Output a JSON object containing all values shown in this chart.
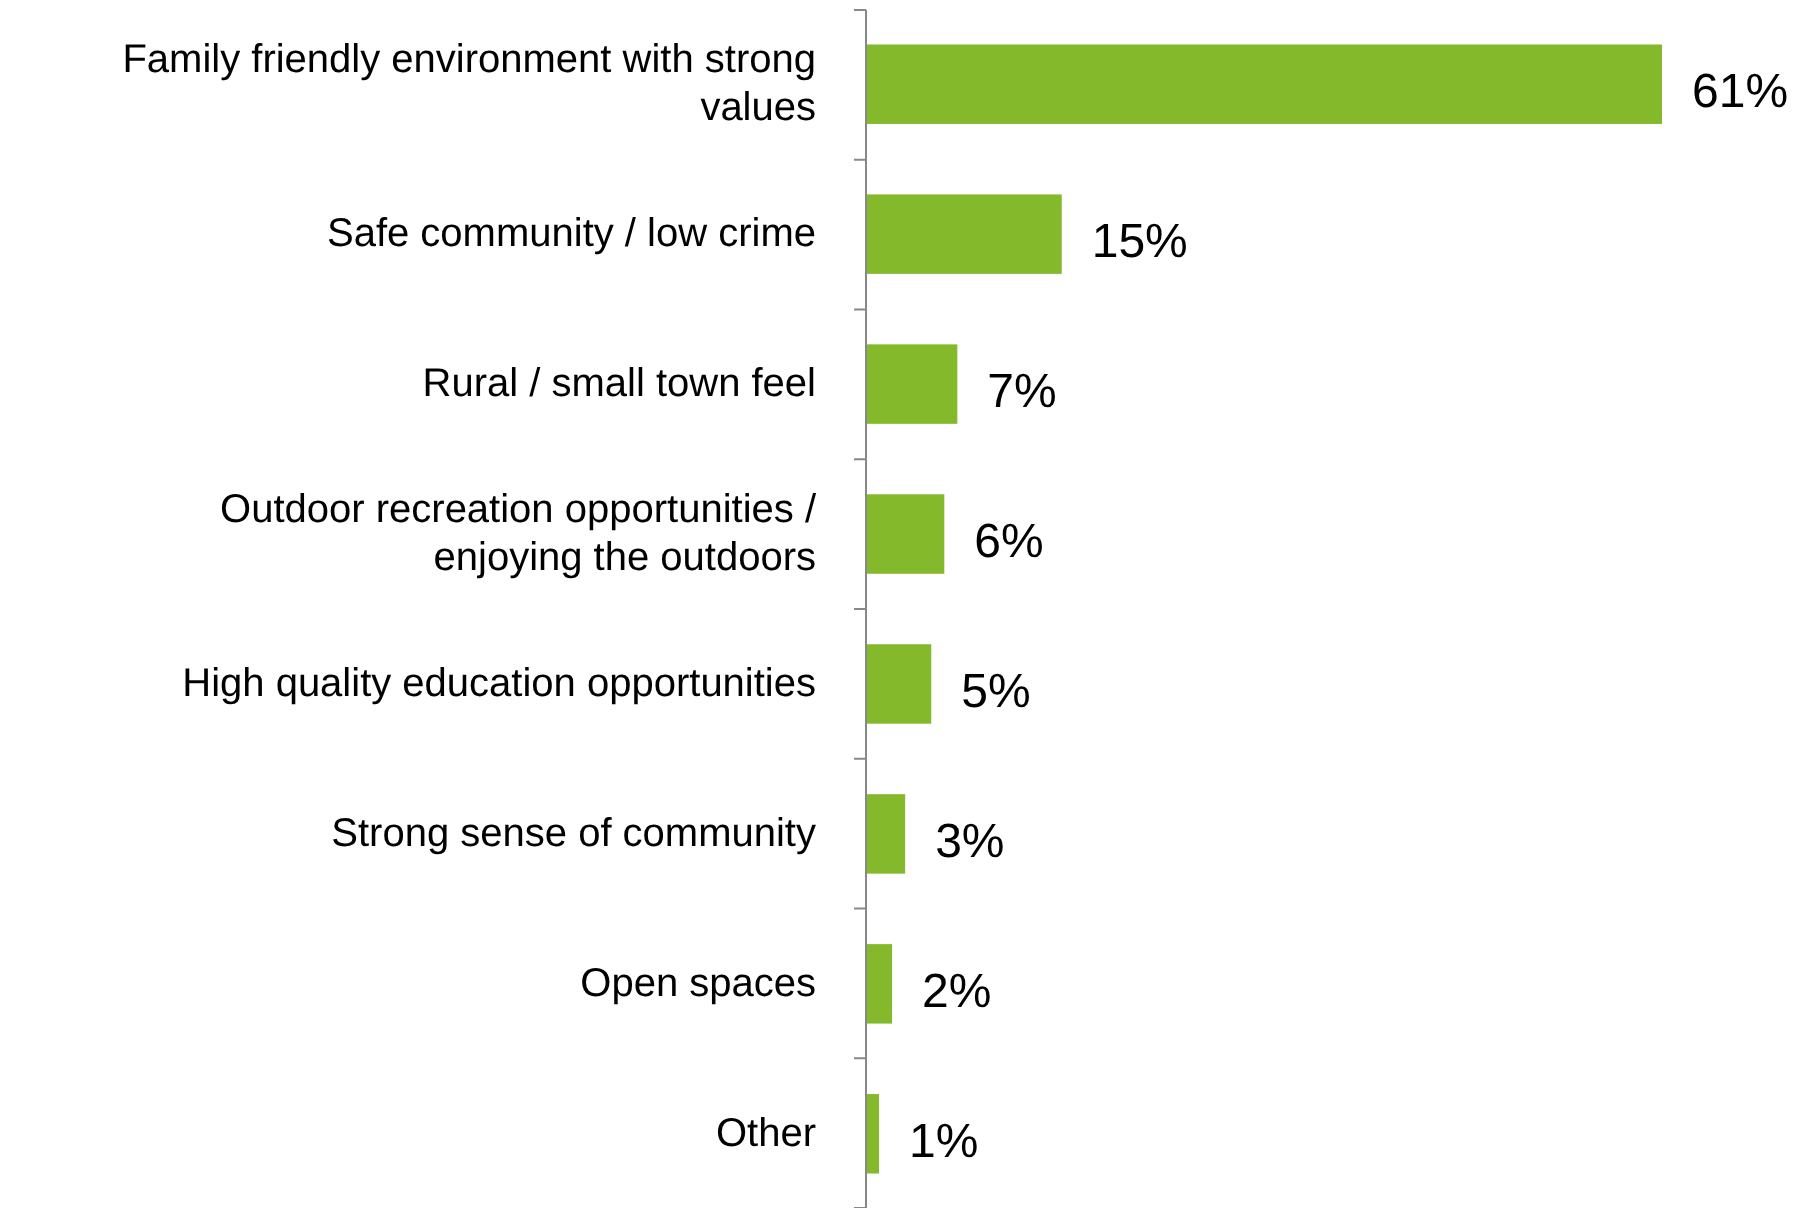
{
  "chart_data": {
    "type": "bar",
    "orientation": "horizontal",
    "categories": [
      "Family friendly environment with strong values",
      "Safe community / low crime",
      "Rural / small town feel",
      "Outdoor recreation opportunities / enjoying the outdoors",
      "High quality education opportunities",
      "Strong sense of community",
      "Open spaces",
      "Other"
    ],
    "values": [
      61,
      15,
      7,
      6,
      5,
      3,
      2,
      1
    ],
    "value_labels": [
      "61%",
      "15%",
      "7%",
      "6%",
      "5%",
      "3%",
      "2%",
      "1%"
    ],
    "color": "#84b92c",
    "grid": false
  }
}
